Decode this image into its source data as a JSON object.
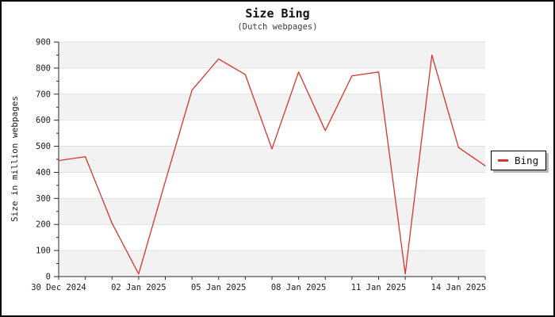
{
  "title": "Size Bing",
  "subtitle": "(Dutch webpages)",
  "legend": {
    "label": "Bing"
  },
  "colors": {
    "line": "#d8352c",
    "band": "#f2f2f2",
    "grid": "#e2e2e2",
    "axis": "#2b2b2b",
    "tick_text": "#1c1c1c",
    "legend_shadow": "#b8b8b8"
  },
  "chart_data": {
    "type": "line",
    "title": "Size Bing",
    "subtitle": "(Dutch webpages)",
    "xlabel": "",
    "ylabel": "Size in million webpages",
    "ylim": [
      0,
      900
    ],
    "y_tick_step": 100,
    "y_minor_step": 50,
    "grid": "horizontal-bands",
    "legend_position": "right-outside",
    "x": [
      "30 Dec 2024",
      "31 Dec 2024",
      "01 Jan 2025",
      "02 Jan 2025",
      "03 Jan 2025",
      "04 Jan 2025",
      "05 Jan 2025",
      "06 Jan 2025",
      "07 Jan 2025",
      "08 Jan 2025",
      "09 Jan 2025",
      "10 Jan 2025",
      "11 Jan 2025",
      "12 Jan 2025",
      "13 Jan 2025",
      "14 Jan 2025",
      "15 Jan 2025"
    ],
    "x_tick_labels": [
      "30 Dec 2024",
      "02 Jan 2025",
      "05 Jan 2025",
      "08 Jan 2025",
      "11 Jan 2025",
      "14 Jan 2025"
    ],
    "x_major_every": 3,
    "series": [
      {
        "name": "Bing",
        "color": "#d8352c",
        "values": [
          445,
          460,
          205,
          10,
          365,
          715,
          835,
          775,
          490,
          785,
          560,
          770,
          785,
          10,
          850,
          495,
          425
        ]
      }
    ]
  }
}
